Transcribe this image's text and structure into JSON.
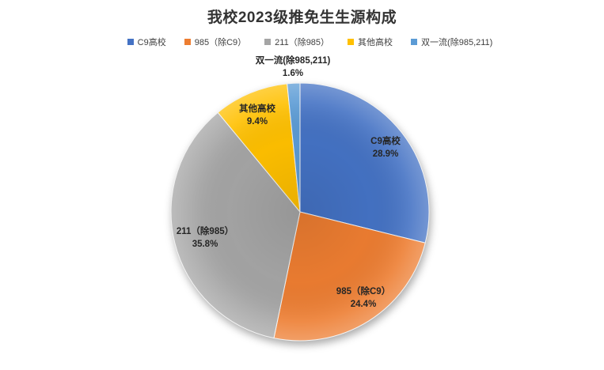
{
  "chart_data": {
    "type": "pie",
    "title": "我校2023级推免生生源构成",
    "legend_position": "top",
    "start_angle_deg": 0,
    "direction": "clockwise",
    "background": "#ffffff",
    "slices": [
      {
        "label": "C9高校",
        "value": 28.9,
        "pct_label": "28.9%",
        "color": "#4472C4",
        "label_placement": "inside"
      },
      {
        "label": "985（除C9）",
        "value": 24.4,
        "pct_label": "24.4%",
        "color": "#ED7D31",
        "label_placement": "inside"
      },
      {
        "label": "211（除985）",
        "value": 35.8,
        "pct_label": "35.8%",
        "color": "#A5A5A5",
        "label_placement": "inside"
      },
      {
        "label": "其他高校",
        "value": 9.4,
        "pct_label": "9.4%",
        "color": "#FFC000",
        "label_placement": "inside"
      },
      {
        "label": "双一流(除985,211)",
        "value": 1.6,
        "pct_label": "1.6%",
        "color": "#5B9BD5",
        "label_placement": "outside"
      }
    ]
  }
}
